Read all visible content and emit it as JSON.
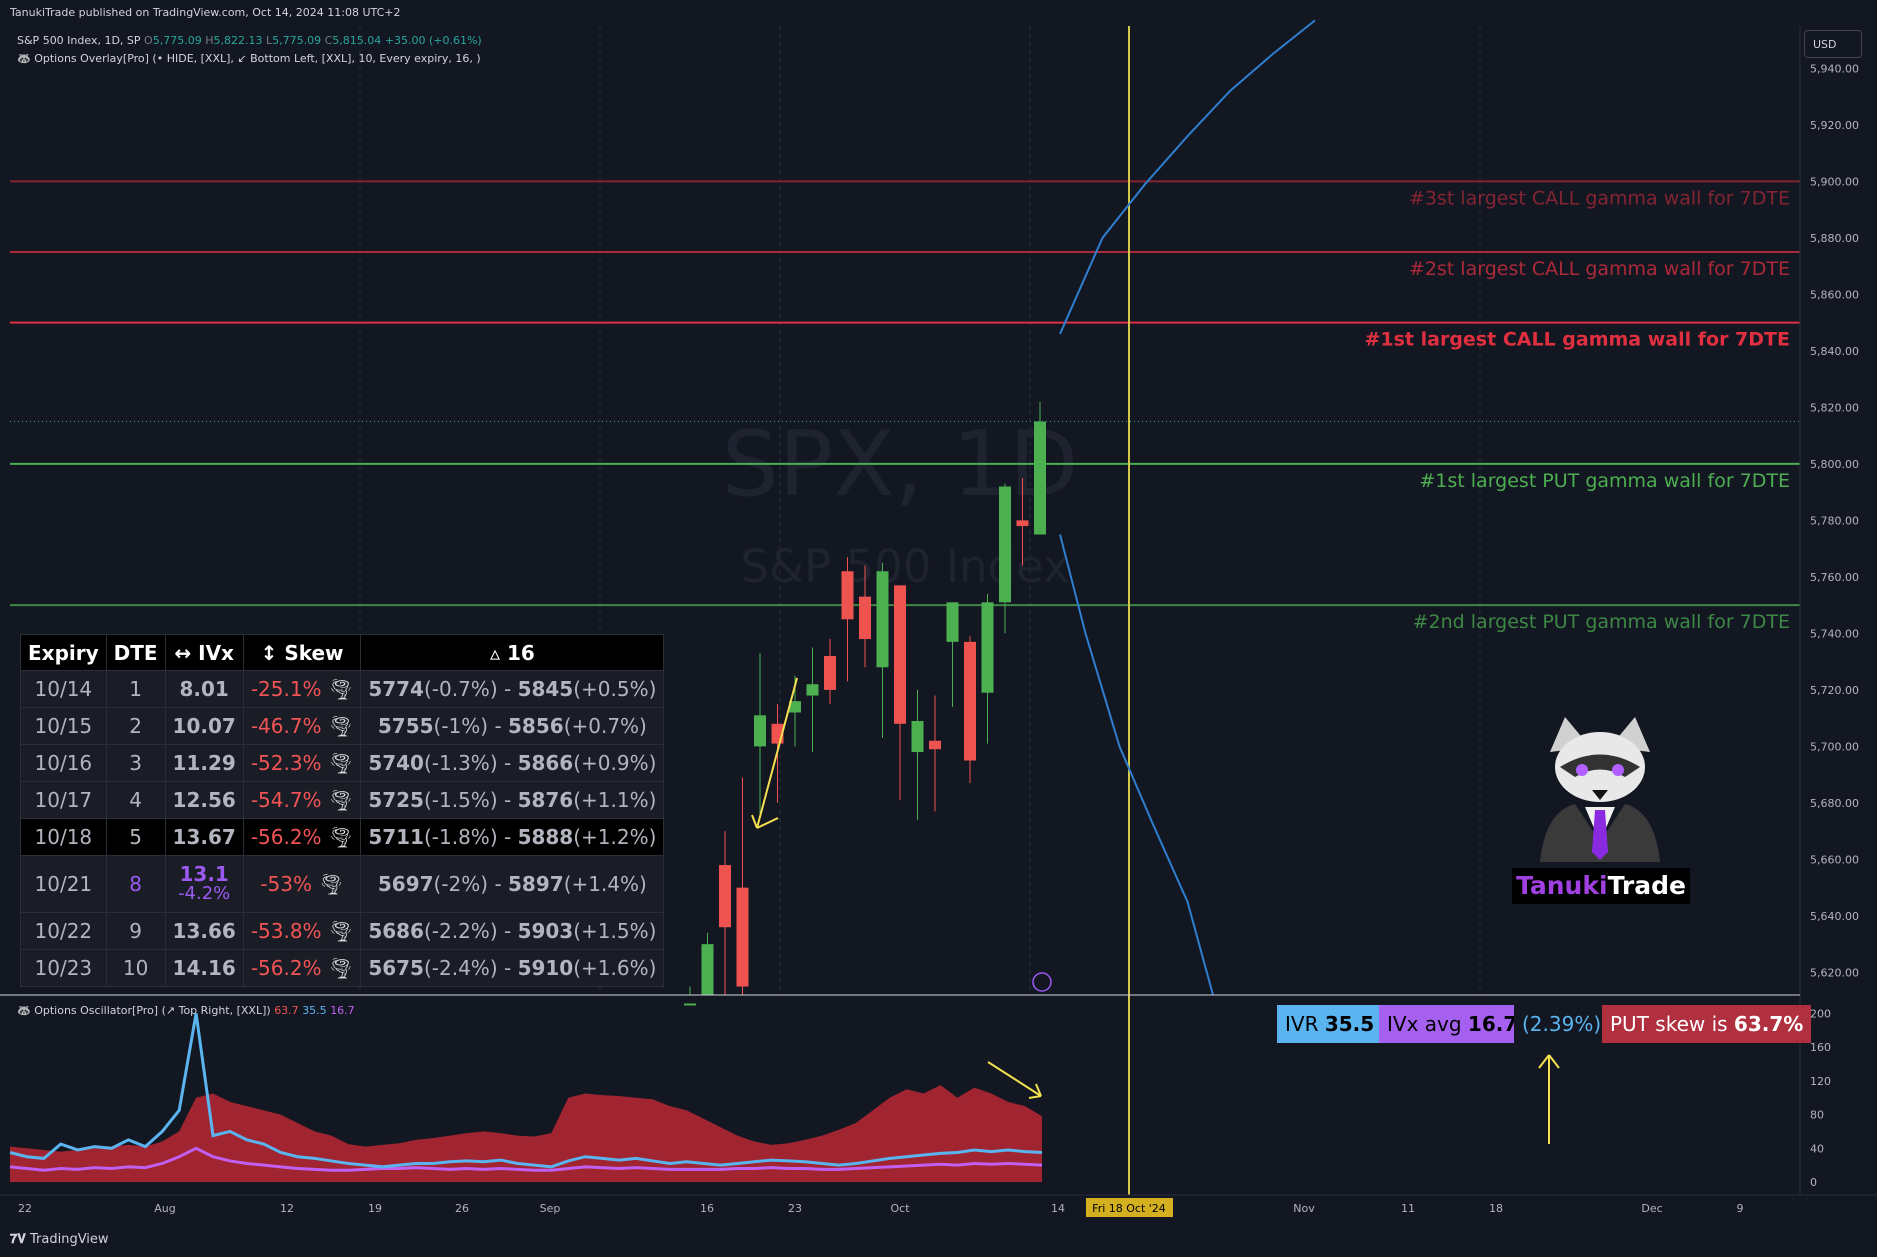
{
  "header": {
    "published": "TanukiTrade published on TradingView.com, Oct 14, 2024 11:08 UTC+2"
  },
  "legend": {
    "symbol": "S&P 500 Index, 1D, SP",
    "o_label": "O",
    "o": "5,775.09",
    "h_label": "H",
    "h": "5,822.13",
    "l_label": "L",
    "l": "5,775.09",
    "c_label": "C",
    "c": "5,815.04",
    "change": "+35.00 (+0.61%)",
    "overlay": "Options Overlay[Pro] (• HIDE, [XXL], ↙ Bottom Left, [XXL], 10, Every expiry, 16, )"
  },
  "oscillator_legend": {
    "name": "Options Oscillator[Pro] (↗ Top Right, [XXL])",
    "v1": "63.7",
    "v2": "35.5",
    "v3": "16.7"
  },
  "currency": "USD",
  "watermark": {
    "line1": "SPX, 1D",
    "line2": "S&P 500 Index"
  },
  "table": {
    "headers": [
      "Expiry",
      "DTE",
      "↔ IVx",
      "↕ Skew",
      "▵ 16"
    ],
    "rows": [
      {
        "expiry": "10/14",
        "dte": "1",
        "ivx": "8.01",
        "skew": "-25.1%",
        "low": "5774",
        "low_pct": "(-0.7%)",
        "sep": " - ",
        "high": "5845",
        "high_pct": "(+0.5%)"
      },
      {
        "expiry": "10/15",
        "dte": "2",
        "ivx": "10.07",
        "skew": "-46.7%",
        "low": "5755",
        "low_pct": "(-1%)",
        "sep": " - ",
        "high": "5856",
        "high_pct": "(+0.7%)"
      },
      {
        "expiry": "10/16",
        "dte": "3",
        "ivx": "11.29",
        "skew": "-52.3%",
        "low": "5740",
        "low_pct": "(-1.3%)",
        "sep": " - ",
        "high": "5866",
        "high_pct": "(+0.9%)"
      },
      {
        "expiry": "10/17",
        "dte": "4",
        "ivx": "12.56",
        "skew": "-54.7%",
        "low": "5725",
        "low_pct": "(-1.5%)",
        "sep": " - ",
        "high": "5876",
        "high_pct": "(+1.1%)"
      },
      {
        "expiry": "10/18",
        "dte": "5",
        "ivx": "13.67",
        "skew": "-56.2%",
        "low": "5711",
        "low_pct": "(-1.8%)",
        "sep": " - ",
        "high": "5888",
        "high_pct": "(+1.2%)"
      },
      {
        "expiry": "10/21",
        "dte": "8",
        "ivx": "13.1",
        "ivx_sub": "-4.2%",
        "skew": "-53%",
        "low": "5697",
        "low_pct": "(-2%)",
        "sep": " - ",
        "high": "5897",
        "high_pct": "(+1.4%)"
      },
      {
        "expiry": "10/22",
        "dte": "9",
        "ivx": "13.66",
        "skew": "-53.8%",
        "low": "5686",
        "low_pct": "(-2.2%)",
        "sep": " - ",
        "high": "5903",
        "high_pct": "(+1.5%)"
      },
      {
        "expiry": "10/23",
        "dte": "10",
        "ivx": "14.16",
        "skew": "-56.2%",
        "low": "5675",
        "low_pct": "(-2.4%)",
        "sep": " - ",
        "high": "5910",
        "high_pct": "(+1.6%)"
      }
    ]
  },
  "pills": {
    "ivr_label": "IVR",
    "ivr": "35.5",
    "ivx_label": "IVx avg",
    "ivx": "16.7",
    "pct": "(2.39%)",
    "skew_label": "PUT skew is",
    "skew": "63.7%"
  },
  "brand": {
    "part1": "Tanuki",
    "part2": "Trade"
  },
  "footer": {
    "logo": "TradingView"
  },
  "colors": {
    "background": "#131722",
    "up": "#4caf50",
    "down": "#ef5350",
    "call_wall": "#e03040",
    "put_wall": "#4caf50",
    "expected_move": "#2f7fd0",
    "today_line": "#d4c84a",
    "iv_line": "#5ab4f0",
    "hv_line": "#c05ff0"
  },
  "chart_data": {
    "type": "candlestick",
    "title": "S&P 500 Index, 1D",
    "y_range": [
      5612,
      5955
    ],
    "y_ticks": [
      "5,940.00",
      "5,920.00",
      "5,900.00",
      "5,880.00",
      "5,860.00",
      "5,840.00",
      "5,820.00",
      "5,800.00",
      "5,780.00",
      "5,760.00",
      "5,740.00",
      "5,720.00",
      "5,700.00",
      "5,680.00",
      "5,660.00",
      "5,640.00",
      "5,620.00"
    ],
    "x_ticks": [
      "22",
      "Aug",
      "12",
      "19",
      "26",
      "Sep",
      "16",
      "23",
      "Oct",
      "14",
      "Nov",
      "11",
      "18",
      "Dec",
      "9"
    ],
    "x_highlight": "Fri 18 Oct '24",
    "candles": [
      {
        "date": "Sep 13",
        "o": 5598,
        "h": 5615,
        "l": 5590,
        "c": 5609,
        "d": "up"
      },
      {
        "date": "Sep 16",
        "o": 5612,
        "h": 5634,
        "l": 5600,
        "c": 5630,
        "d": "up"
      },
      {
        "date": "Sep 17",
        "o": 5658,
        "h": 5670,
        "l": 5610,
        "c": 5636,
        "d": "down"
      },
      {
        "date": "Sep 18",
        "o": 5650,
        "h": 5689,
        "l": 5610,
        "c": 5615,
        "d": "down"
      },
      {
        "date": "Sep 19",
        "o": 5700,
        "h": 5733,
        "l": 5676,
        "c": 5711,
        "d": "up"
      },
      {
        "date": "Sep 20",
        "o": 5708,
        "h": 5715,
        "l": 5680,
        "c": 5701,
        "d": "down"
      },
      {
        "date": "Sep 23",
        "o": 5712,
        "h": 5725,
        "l": 5700,
        "c": 5716,
        "d": "up"
      },
      {
        "date": "Sep 24",
        "o": 5718,
        "h": 5735,
        "l": 5698,
        "c": 5722,
        "d": "up"
      },
      {
        "date": "Sep 25",
        "o": 5732,
        "h": 5738,
        "l": 5715,
        "c": 5720,
        "d": "down"
      },
      {
        "date": "Sep 26",
        "o": 5762,
        "h": 5767,
        "l": 5723,
        "c": 5745,
        "d": "down"
      },
      {
        "date": "Sep 27",
        "o": 5753,
        "h": 5764,
        "l": 5728,
        "c": 5738,
        "d": "down"
      },
      {
        "date": "Sep 30",
        "o": 5728,
        "h": 5765,
        "l": 5703,
        "c": 5762,
        "d": "up"
      },
      {
        "date": "Oct 1",
        "o": 5757,
        "h": 5757,
        "l": 5681,
        "c": 5708,
        "d": "down"
      },
      {
        "date": "Oct 2",
        "o": 5698,
        "h": 5720,
        "l": 5674,
        "c": 5709,
        "d": "up"
      },
      {
        "date": "Oct 3",
        "o": 5702,
        "h": 5718,
        "l": 5677,
        "c": 5699,
        "d": "down"
      },
      {
        "date": "Oct 4",
        "o": 5737,
        "h": 5751,
        "l": 5714,
        "c": 5751,
        "d": "up"
      },
      {
        "date": "Oct 7",
        "o": 5737,
        "h": 5739,
        "l": 5687,
        "c": 5695,
        "d": "down"
      },
      {
        "date": "Oct 8",
        "o": 5719,
        "h": 5754,
        "l": 5701,
        "c": 5751,
        "d": "up"
      },
      {
        "date": "Oct 9",
        "o": 5751,
        "h": 5793,
        "l": 5740,
        "c": 5792,
        "d": "up"
      },
      {
        "date": "Oct 10",
        "o": 5778,
        "h": 5795,
        "l": 5764,
        "c": 5780,
        "d": "down"
      },
      {
        "date": "Oct 11",
        "o": 5775,
        "h": 5822,
        "l": 5775,
        "c": 5815,
        "d": "up"
      }
    ],
    "gamma_walls": [
      {
        "label": "#3st largest CALL gamma wall for 7DTE",
        "price": 5900,
        "price_label": "5,900.00",
        "kind": "call",
        "rank": 3
      },
      {
        "label": "#2st largest CALL gamma wall for 7DTE",
        "price": 5875,
        "price_label": "5,875.00",
        "kind": "call",
        "rank": 2
      },
      {
        "label": "#1st largest CALL gamma wall for 7DTE",
        "price": 5850,
        "price_label": "5,850.00",
        "kind": "call",
        "rank": 1
      },
      {
        "label": "#1st largest PUT gamma wall for 7DTE",
        "price": 5800,
        "price_label": "5,800.00",
        "kind": "put",
        "rank": 1
      },
      {
        "label": "#2nd largest PUT gamma wall for 7DTE",
        "price": 5750,
        "price_label": "5,750.00",
        "kind": "put",
        "rank": 2
      }
    ],
    "last_price_label": "5,815.04",
    "last_price": 5815.04,
    "upper_band": [
      [
        0,
        5846
      ],
      [
        5,
        5880
      ],
      [
        10,
        5899
      ],
      [
        15,
        5916
      ],
      [
        20,
        5932
      ],
      [
        25,
        5945
      ],
      [
        30,
        5957
      ]
    ],
    "lower_band": [
      [
        0,
        5775
      ],
      [
        3,
        5740
      ],
      [
        7,
        5700
      ],
      [
        11,
        5672
      ],
      [
        15,
        5645
      ],
      [
        18,
        5612
      ]
    ],
    "oscillator": {
      "y_ticks": [
        "200",
        "160",
        "120",
        "80",
        "40",
        "0"
      ],
      "y_range": [
        0,
        210
      ],
      "iv_rank": [
        35,
        30,
        28,
        45,
        38,
        42,
        40,
        50,
        42,
        60,
        85,
        200,
        55,
        60,
        50,
        45,
        35,
        30,
        28,
        25,
        22,
        20,
        18,
        20,
        22,
        22,
        24,
        25,
        24,
        26,
        22,
        20,
        18,
        25,
        30,
        28,
        26,
        28,
        25,
        22,
        24,
        22,
        20,
        22,
        24,
        26,
        25,
        24,
        22,
        20,
        22,
        25,
        28,
        30,
        32,
        34,
        35,
        38,
        36,
        38,
        36,
        35
      ],
      "skew_area": [
        42,
        40,
        38,
        36,
        38,
        40,
        42,
        44,
        42,
        48,
        60,
        100,
        105,
        95,
        90,
        85,
        80,
        70,
        60,
        55,
        45,
        42,
        44,
        46,
        50,
        52,
        55,
        58,
        60,
        58,
        55,
        54,
        58,
        100,
        105,
        103,
        102,
        100,
        98,
        90,
        85,
        75,
        65,
        55,
        48,
        44,
        46,
        50,
        55,
        62,
        70,
        85,
        100,
        110,
        105,
        115,
        100,
        112,
        105,
        95,
        90,
        78
      ],
      "hv": [
        18,
        16,
        14,
        16,
        15,
        17,
        16,
        18,
        17,
        22,
        30,
        40,
        30,
        25,
        22,
        20,
        18,
        16,
        15,
        14,
        14,
        15,
        16,
        16,
        17,
        16,
        15,
        16,
        15,
        16,
        15,
        14,
        14,
        16,
        18,
        17,
        16,
        17,
        16,
        15,
        15,
        15,
        15,
        16,
        16,
        17,
        16,
        16,
        15,
        15,
        16,
        17,
        18,
        19,
        20,
        21,
        20,
        22,
        21,
        22,
        21,
        20
      ]
    }
  }
}
